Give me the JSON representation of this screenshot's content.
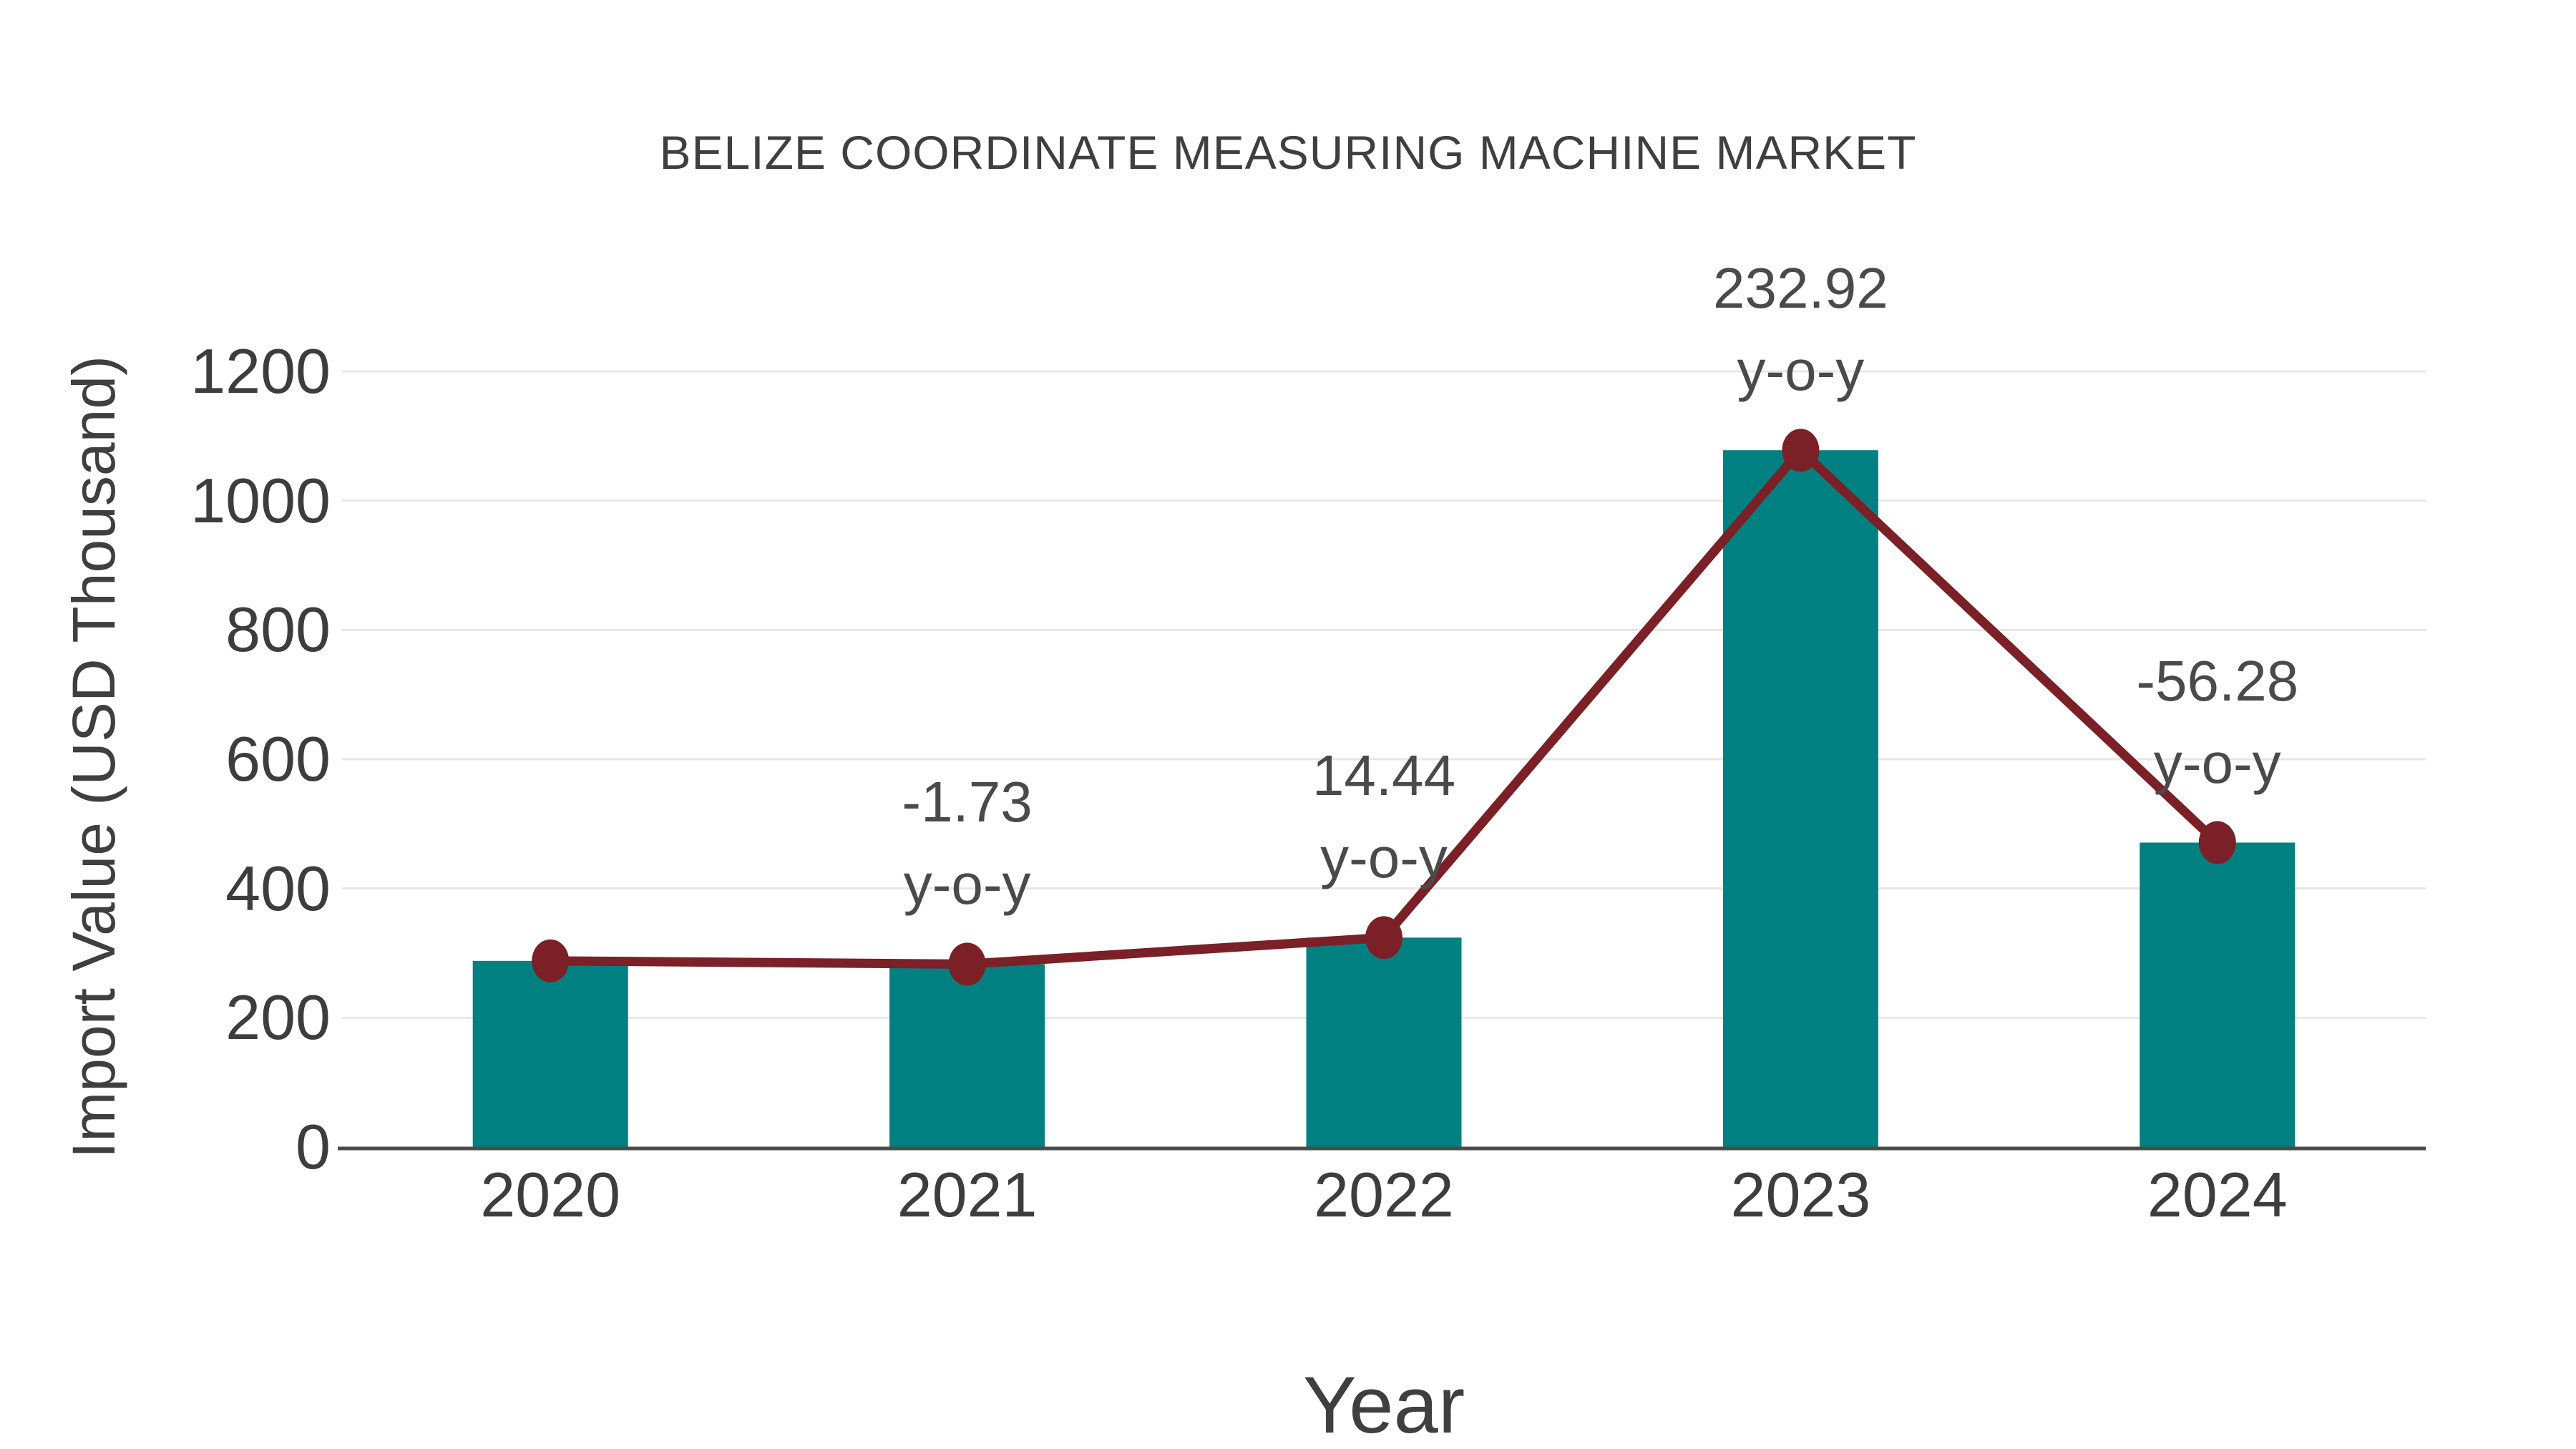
{
  "title": "BELIZE COORDINATE MEASURING MACHINE MARKET",
  "chart_data": {
    "type": "bar",
    "subtype": "combo-bar-line",
    "title": "BELIZE COORDINATE MEASURING MACHINE MARKET",
    "xlabel": "Year",
    "ylabel": "Import Value (USD Thousand)",
    "categories": [
      "2020",
      "2021",
      "2022",
      "2023",
      "2024"
    ],
    "series": [
      {
        "name": "Import Value (USD Thousand)",
        "type": "bar",
        "values": [
          288,
          283,
          324,
          1078,
          471
        ],
        "color": "#008080"
      },
      {
        "name": "y-o-y trend line",
        "type": "line",
        "values": [
          288,
          283,
          324,
          1078,
          471
        ],
        "color": "#7a2026"
      }
    ],
    "annotations": [
      {
        "category": "2021",
        "line1": "-1.73",
        "line2": "y-o-y"
      },
      {
        "category": "2022",
        "line1": "14.44",
        "line2": "y-o-y"
      },
      {
        "category": "2023",
        "line1": "232.92",
        "line2": "y-o-y"
      },
      {
        "category": "2024",
        "line1": "-56.28",
        "line2": "y-o-y"
      }
    ],
    "ylim": [
      0,
      1200
    ],
    "yticks": [
      0,
      200,
      400,
      600,
      800,
      1000,
      1200
    ],
    "grid": "horizontal",
    "legend_position": "none",
    "colors": {
      "bar": "#008080",
      "line": "#7a2026",
      "marker": "#7a2026",
      "gridline": "#e7e7e7",
      "axis_line": "#4a4a4a",
      "text": "#3f3f3f",
      "annotation_text": "#4a4a4a",
      "background": "#ffffff"
    }
  }
}
